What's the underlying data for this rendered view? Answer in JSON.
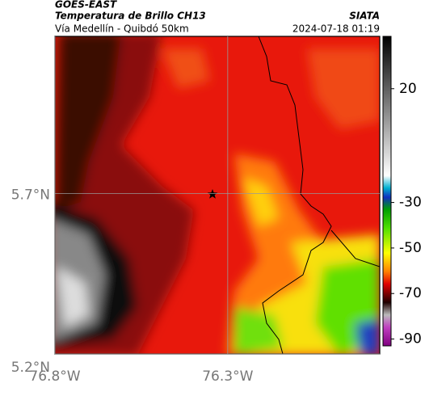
{
  "header": {
    "source": "GOES-EAST",
    "title": "Temperatura de Brillo CH13",
    "subtitle": "Vía Medellín - Quibdó 50km",
    "brand": "SIATA",
    "timestamp": "2024-07-18 01:19"
  },
  "map": {
    "xlim": [
      -76.8,
      -75.86
    ],
    "ylim": [
      5.2,
      6.19
    ],
    "xticks": [
      {
        "value": -76.8,
        "label": "76.8°W"
      },
      {
        "value": -76.3,
        "label": "76.3°W"
      }
    ],
    "yticks": [
      {
        "value": 5.7,
        "label": "5.7°N"
      },
      {
        "value": 5.2,
        "label": "5.2°N"
      }
    ],
    "colorbar": {
      "lim": [
        -93,
        43
      ],
      "ticks": [
        20,
        -30,
        -50,
        -70,
        -90
      ]
    }
  }
}
